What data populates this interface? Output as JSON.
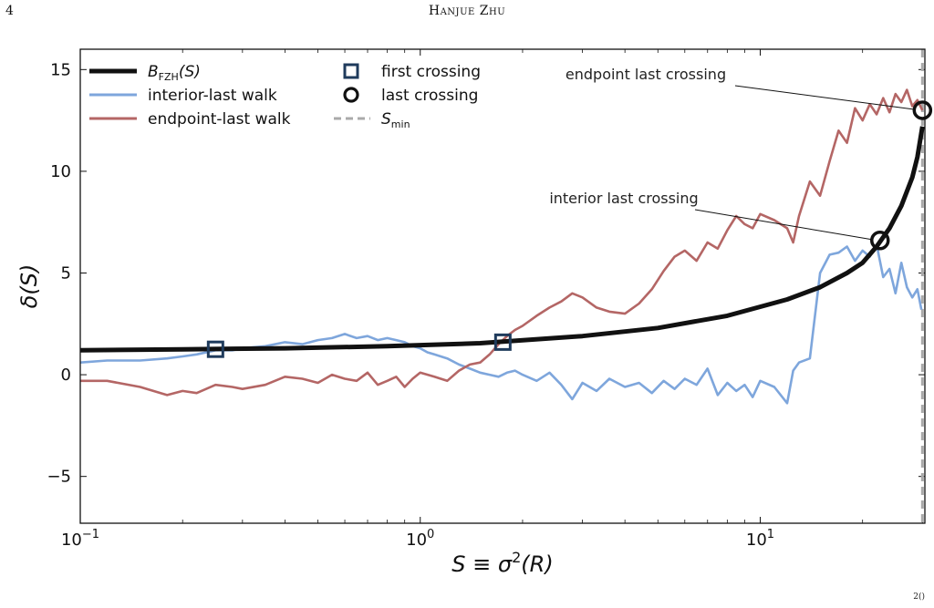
{
  "header": {
    "page_number": "4",
    "running_head": "Hanjue Zhu"
  },
  "footer": {
    "mark": "2()"
  },
  "colors": {
    "barrier": "#111111",
    "interior_walk": "#7ea6dc",
    "endpoint_walk": "#b46665",
    "first_crossing": "#1f3b5c",
    "s_min": "#aaaaaa"
  },
  "chart_data": {
    "type": "line",
    "xscale": "log",
    "xlim": [
      0.1,
      30.5
    ],
    "ylim": [
      -7.3,
      16
    ],
    "x_ticks": [
      {
        "value": 0.1,
        "base": "10",
        "exp": "−1"
      },
      {
        "value": 1,
        "base": "10",
        "exp": "0"
      },
      {
        "value": 10,
        "base": "10",
        "exp": "1"
      }
    ],
    "y_ticks": [
      {
        "value": -5,
        "label": "−5"
      },
      {
        "value": 0,
        "label": "0"
      },
      {
        "value": 5,
        "label": "5"
      },
      {
        "value": 10,
        "label": "10"
      },
      {
        "value": 15,
        "label": "15"
      }
    ],
    "xlabel": "S ≡ σ²(R)",
    "ylabel": "δ(S)",
    "legend": {
      "placement": "top-left",
      "items": [
        {
          "kind": "line",
          "key": "barrier",
          "label": "B",
          "sub": "FZH",
          "suffix": "(S)"
        },
        {
          "kind": "line",
          "key": "interior_walk",
          "label": "interior-last walk"
        },
        {
          "kind": "line",
          "key": "endpoint_walk",
          "label": "endpoint-last walk"
        },
        {
          "kind": "square",
          "key": "first_crossing",
          "label": "first crossing"
        },
        {
          "kind": "circle",
          "key": "last_crossing",
          "label": "last crossing"
        },
        {
          "kind": "dash",
          "key": "s_min",
          "label": "S",
          "sub": "min"
        }
      ]
    },
    "barrier": {
      "name": "B_FZH(S)",
      "x": [
        0.1,
        0.2,
        0.4,
        0.8,
        1.5,
        3,
        5,
        8,
        12,
        15,
        18,
        20,
        22,
        24,
        26,
        28,
        29,
        30
      ],
      "y": [
        1.2,
        1.25,
        1.3,
        1.4,
        1.55,
        1.9,
        2.3,
        2.9,
        3.7,
        4.3,
        5.0,
        5.5,
        6.3,
        7.2,
        8.3,
        9.7,
        10.7,
        12.2
      ]
    },
    "series": [
      {
        "name": "interior-last walk",
        "x": [
          0.1,
          0.12,
          0.15,
          0.18,
          0.2,
          0.22,
          0.25,
          0.28,
          0.3,
          0.35,
          0.4,
          0.45,
          0.5,
          0.55,
          0.6,
          0.65,
          0.7,
          0.75,
          0.8,
          0.85,
          0.9,
          0.95,
          1.0,
          1.05,
          1.1,
          1.2,
          1.3,
          1.4,
          1.5,
          1.6,
          1.7,
          1.8,
          1.9,
          2.0,
          2.2,
          2.4,
          2.6,
          2.8,
          3.0,
          3.3,
          3.6,
          4.0,
          4.4,
          4.8,
          5.2,
          5.6,
          6.0,
          6.5,
          7.0,
          7.5,
          8.0,
          8.5,
          9.0,
          9.5,
          10.0,
          11.0,
          12.0,
          12.5,
          13.0,
          14.0,
          15.0,
          16.0,
          17.0,
          18.0,
          19.0,
          20.0,
          21.0,
          22.0,
          23.0,
          24.0,
          25.0,
          26.0,
          27.0,
          28.0,
          29.0,
          29.8
        ],
        "y": [
          0.6,
          0.7,
          0.7,
          0.8,
          0.9,
          1.0,
          1.2,
          1.2,
          1.3,
          1.4,
          1.6,
          1.5,
          1.7,
          1.8,
          2.0,
          1.8,
          1.9,
          1.7,
          1.8,
          1.7,
          1.6,
          1.4,
          1.3,
          1.1,
          1.0,
          0.8,
          0.5,
          0.3,
          0.1,
          0.0,
          -0.1,
          0.1,
          0.2,
          0.0,
          -0.3,
          0.1,
          -0.5,
          -1.2,
          -0.4,
          -0.8,
          -0.2,
          -0.6,
          -0.4,
          -0.9,
          -0.3,
          -0.7,
          -0.2,
          -0.5,
          0.3,
          -1.0,
          -0.4,
          -0.8,
          -0.5,
          -1.1,
          -0.3,
          -0.6,
          -1.4,
          0.2,
          0.6,
          0.8,
          5.0,
          5.9,
          6.0,
          6.3,
          5.6,
          6.1,
          5.8,
          6.4,
          4.8,
          5.2,
          4.0,
          5.5,
          4.3,
          3.8,
          4.2,
          3.2
        ]
      },
      {
        "name": "endpoint-last walk",
        "x": [
          0.1,
          0.12,
          0.15,
          0.18,
          0.2,
          0.22,
          0.25,
          0.28,
          0.3,
          0.35,
          0.4,
          0.45,
          0.5,
          0.55,
          0.6,
          0.65,
          0.7,
          0.75,
          0.8,
          0.85,
          0.9,
          0.95,
          1.0,
          1.1,
          1.2,
          1.3,
          1.4,
          1.5,
          1.6,
          1.7,
          1.8,
          1.9,
          2.0,
          2.2,
          2.4,
          2.6,
          2.8,
          3.0,
          3.3,
          3.6,
          4.0,
          4.4,
          4.8,
          5.2,
          5.6,
          6.0,
          6.5,
          7.0,
          7.5,
          8.0,
          8.5,
          9.0,
          9.5,
          10.0,
          11.0,
          12.0,
          12.5,
          13.0,
          14.0,
          15.0,
          16.0,
          17.0,
          18.0,
          19.0,
          20.0,
          21.0,
          22.0,
          23.0,
          24.0,
          25.0,
          26.0,
          27.0,
          28.0,
          29.0,
          30.0
        ],
        "y": [
          -0.3,
          -0.3,
          -0.6,
          -1.0,
          -0.8,
          -0.9,
          -0.5,
          -0.6,
          -0.7,
          -0.5,
          -0.1,
          -0.2,
          -0.4,
          0.0,
          -0.2,
          -0.3,
          0.1,
          -0.5,
          -0.3,
          -0.1,
          -0.6,
          -0.2,
          0.1,
          -0.1,
          -0.3,
          0.2,
          0.5,
          0.6,
          1.0,
          1.5,
          1.9,
          2.2,
          2.4,
          2.9,
          3.3,
          3.6,
          4.0,
          3.8,
          3.3,
          3.1,
          3.0,
          3.5,
          4.2,
          5.1,
          5.8,
          6.1,
          5.6,
          6.5,
          6.2,
          7.1,
          7.8,
          7.4,
          7.2,
          7.9,
          7.6,
          7.2,
          6.5,
          7.8,
          9.5,
          8.8,
          10.5,
          12.0,
          11.4,
          13.1,
          12.5,
          13.3,
          12.8,
          13.6,
          12.9,
          13.8,
          13.4,
          14.0,
          13.2,
          13.5,
          13.0
        ]
      }
    ],
    "s_min": {
      "x": 30.0
    },
    "first_crossings": [
      {
        "x": 0.25,
        "y": 1.25
      },
      {
        "x": 1.75,
        "y": 1.6
      }
    ],
    "last_crossings": [
      {
        "x": 22.5,
        "y": 6.6
      },
      {
        "x": 30.0,
        "y": 13.0
      }
    ],
    "annotations": [
      {
        "text": "endpoint last crossing",
        "target": {
          "x": 30.0,
          "y": 13.0
        }
      },
      {
        "text": "interior last crossing",
        "target": {
          "x": 22.5,
          "y": 6.6
        }
      }
    ]
  }
}
